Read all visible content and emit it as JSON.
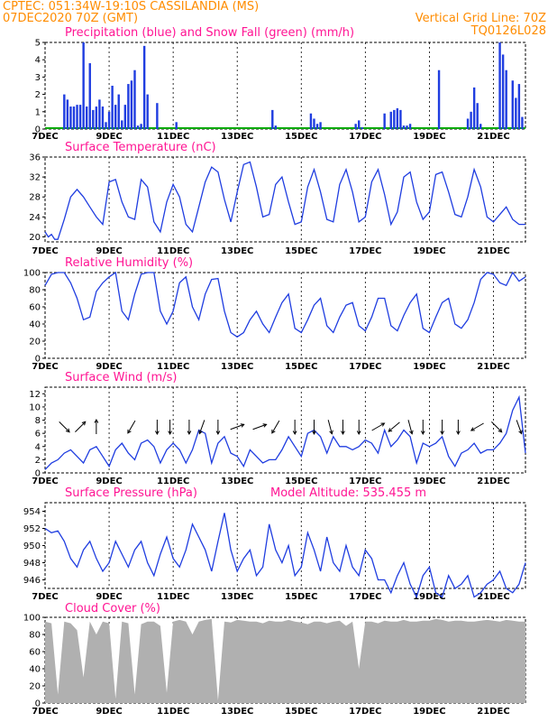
{
  "header": {
    "line1_left": "CPTEC:   051:34W-19:10S   CASSILANDIA (MS)",
    "line2_left": "07DEC2020 70Z (GMT)",
    "line2_right": "Vertical Grid Line: 70Z",
    "line3_right": "TQ0126L028"
  },
  "x_dates": [
    "7DEC",
    "9DEC",
    "11DEC",
    "13DEC",
    "15DEC",
    "17DEC",
    "19DEC",
    "21DEC"
  ],
  "colors": {
    "precip": "#1f3de0",
    "snow": "#00aa00",
    "line": "#1f3de0",
    "cloud": "#b0b0b0"
  },
  "chart_data": [
    {
      "id": "precip",
      "type": "bar",
      "title": "Precipitation (blue) and Snow Fall (green) (mm/h)",
      "xlabel": "",
      "ylabel": "mm/h",
      "ylim": [
        0,
        5
      ],
      "yticks": [
        0,
        1,
        2,
        3,
        4,
        5
      ],
      "x_range_days": [
        0,
        15
      ],
      "series": [
        {
          "name": "Precipitation",
          "x": [
            0.6,
            0.7,
            0.8,
            0.9,
            1.0,
            1.1,
            1.2,
            1.3,
            1.4,
            1.5,
            1.6,
            1.7,
            1.8,
            1.9,
            2.0,
            2.1,
            2.2,
            2.3,
            2.4,
            2.5,
            2.6,
            2.7,
            2.8,
            2.9,
            3.0,
            3.1,
            3.2,
            3.5,
            4.1,
            7.1,
            7.2,
            8.3,
            8.4,
            8.5,
            8.6,
            9.7,
            9.8,
            9.9,
            10.6,
            10.8,
            10.9,
            11.0,
            11.1,
            11.2,
            11.3,
            11.4,
            12.3,
            13.2,
            13.3,
            13.4,
            13.5,
            13.6,
            14.2,
            14.3,
            14.4,
            14.6,
            14.7,
            14.8,
            14.9
          ],
          "values": [
            2.0,
            1.7,
            1.3,
            1.3,
            1.4,
            1.4,
            5.0,
            1.3,
            3.8,
            1.1,
            1.3,
            1.7,
            1.3,
            0.4,
            1.0,
            2.5,
            1.4,
            2.0,
            0.5,
            1.4,
            2.6,
            2.8,
            3.4,
            0.2,
            0.3,
            4.8,
            2.0,
            1.5,
            0.4,
            1.1,
            0.2,
            0.9,
            0.6,
            0.3,
            0.4,
            0.3,
            0.5,
            0.1,
            0.9,
            1.0,
            1.1,
            1.2,
            1.1,
            0.2,
            0.2,
            0.3,
            3.4,
            0.6,
            1.0,
            2.4,
            1.5,
            0.3,
            5.0,
            4.3,
            3.4,
            2.8,
            1.8,
            2.6,
            0.7
          ]
        },
        {
          "name": "Snow Fall",
          "x": [],
          "values": []
        }
      ]
    },
    {
      "id": "temp",
      "type": "line",
      "title": "Surface Temperature (nC)",
      "ylim": [
        19,
        36
      ],
      "yticks": [
        20,
        24,
        28,
        32,
        36
      ],
      "x_range_days": [
        0,
        15
      ],
      "x": [
        0,
        0.1,
        0.2,
        0.3,
        0.4,
        0.6,
        0.8,
        1.0,
        1.2,
        1.4,
        1.6,
        1.8,
        2.0,
        2.2,
        2.4,
        2.6,
        2.8,
        3.0,
        3.2,
        3.4,
        3.6,
        3.8,
        4.0,
        4.2,
        4.4,
        4.6,
        4.8,
        5.0,
        5.2,
        5.4,
        5.6,
        5.8,
        6.0,
        6.2,
        6.4,
        6.6,
        6.8,
        7.0,
        7.2,
        7.4,
        7.6,
        7.8,
        8.0,
        8.2,
        8.4,
        8.6,
        8.8,
        9.0,
        9.2,
        9.4,
        9.6,
        9.8,
        10.0,
        10.2,
        10.4,
        10.6,
        10.8,
        11.0,
        11.2,
        11.4,
        11.6,
        11.8,
        12.0,
        12.2,
        12.4,
        12.6,
        12.8,
        13.0,
        13.2,
        13.4,
        13.6,
        13.8,
        14.0,
        14.2,
        14.4,
        14.6,
        14.8,
        15.0
      ],
      "y": [
        21.0,
        20.0,
        20.5,
        19.5,
        19.5,
        23.5,
        28.0,
        29.5,
        28.0,
        26.0,
        24.0,
        22.5,
        31.0,
        31.5,
        27.0,
        24.0,
        23.5,
        31.5,
        30.0,
        23.0,
        21.0,
        27.0,
        30.5,
        28.0,
        22.5,
        21.0,
        26.0,
        31.0,
        34.0,
        33.0,
        27.5,
        23.0,
        29.0,
        34.5,
        35.0,
        30.0,
        24.0,
        24.5,
        30.5,
        32.0,
        27.0,
        22.5,
        23.0,
        30.0,
        33.5,
        29.0,
        23.5,
        23.0,
        30.5,
        33.5,
        29.0,
        23.0,
        24.0,
        31.0,
        33.5,
        28.5,
        22.5,
        25.0,
        32.0,
        33.0,
        27.0,
        23.5,
        25.0,
        32.5,
        33.0,
        29.0,
        24.5,
        24.0,
        28.0,
        33.5,
        30.0,
        24.0,
        23.0,
        24.5,
        26.0,
        23.5,
        22.5,
        22.5
      ]
    },
    {
      "id": "rh",
      "type": "line",
      "title": "Relative Humidity (%)",
      "ylim": [
        0,
        100
      ],
      "yticks": [
        0,
        20,
        40,
        60,
        80,
        100
      ],
      "x_range_days": [
        0,
        15
      ],
      "x": [
        0,
        0.2,
        0.4,
        0.6,
        0.8,
        1.0,
        1.2,
        1.4,
        1.6,
        1.8,
        2.0,
        2.2,
        2.4,
        2.6,
        2.8,
        3.0,
        3.2,
        3.4,
        3.6,
        3.8,
        4.0,
        4.2,
        4.4,
        4.6,
        4.8,
        5.0,
        5.2,
        5.4,
        5.6,
        5.8,
        6.0,
        6.2,
        6.4,
        6.6,
        6.8,
        7.0,
        7.2,
        7.4,
        7.6,
        7.8,
        8.0,
        8.2,
        8.4,
        8.6,
        8.8,
        9.0,
        9.2,
        9.4,
        9.6,
        9.8,
        10.0,
        10.2,
        10.4,
        10.6,
        10.8,
        11.0,
        11.2,
        11.4,
        11.6,
        11.8,
        12.0,
        12.2,
        12.4,
        12.6,
        12.8,
        13.0,
        13.2,
        13.4,
        13.6,
        13.8,
        14.0,
        14.2,
        14.4,
        14.6,
        14.8,
        15.0
      ],
      "y": [
        85,
        98,
        100,
        100,
        88,
        70,
        45,
        48,
        78,
        88,
        95,
        100,
        55,
        45,
        75,
        98,
        100,
        100,
        55,
        40,
        55,
        88,
        95,
        60,
        45,
        75,
        92,
        93,
        55,
        30,
        25,
        30,
        45,
        55,
        40,
        30,
        48,
        65,
        75,
        35,
        30,
        45,
        62,
        70,
        38,
        30,
        48,
        62,
        65,
        38,
        32,
        48,
        70,
        70,
        38,
        32,
        50,
        65,
        75,
        35,
        30,
        48,
        65,
        70,
        40,
        35,
        45,
        65,
        92,
        100,
        98,
        88,
        85,
        100,
        90,
        95
      ]
    },
    {
      "id": "wind",
      "type": "line",
      "title": "Surface Wind (m/s)",
      "ylim": [
        0,
        13
      ],
      "yticks": [
        0,
        2,
        4,
        6,
        8,
        10,
        12
      ],
      "x_range_days": [
        0,
        15
      ],
      "x": [
        0,
        0.2,
        0.4,
        0.6,
        0.8,
        1.0,
        1.2,
        1.4,
        1.6,
        1.8,
        2.0,
        2.2,
        2.4,
        2.6,
        2.8,
        3.0,
        3.2,
        3.4,
        3.6,
        3.8,
        4.0,
        4.2,
        4.4,
        4.6,
        4.8,
        5.0,
        5.2,
        5.4,
        5.6,
        5.8,
        6.0,
        6.2,
        6.4,
        6.6,
        6.8,
        7.0,
        7.2,
        7.4,
        7.6,
        7.8,
        8.0,
        8.2,
        8.4,
        8.6,
        8.8,
        9.0,
        9.2,
        9.4,
        9.6,
        9.8,
        10.0,
        10.2,
        10.4,
        10.6,
        10.8,
        11.0,
        11.2,
        11.4,
        11.6,
        11.8,
        12.0,
        12.2,
        12.4,
        12.6,
        12.8,
        13.0,
        13.2,
        13.4,
        13.6,
        13.8,
        14.0,
        14.2,
        14.4,
        14.6,
        14.8,
        15.0
      ],
      "y": [
        0.5,
        1.5,
        2.0,
        3.0,
        3.5,
        2.5,
        1.5,
        3.5,
        4.0,
        2.5,
        1.0,
        3.5,
        4.5,
        3.0,
        2.0,
        4.5,
        5.0,
        4.0,
        1.5,
        3.5,
        4.5,
        3.5,
        1.5,
        3.5,
        6.5,
        6.0,
        1.5,
        4.5,
        5.5,
        3.0,
        2.5,
        1.0,
        3.5,
        2.5,
        1.5,
        2.0,
        2.0,
        3.5,
        5.5,
        4.0,
        2.5,
        6.0,
        6.5,
        5.5,
        3.0,
        5.5,
        4.0,
        4.0,
        3.5,
        4.0,
        5.0,
        4.5,
        3.0,
        6.5,
        4.0,
        5.0,
        6.5,
        5.5,
        1.5,
        4.5,
        4.0,
        4.5,
        5.5,
        2.5,
        1.0,
        3.0,
        3.5,
        4.5,
        3.0,
        3.5,
        3.5,
        4.5,
        6.0,
        9.5,
        11.5,
        3.0
      ],
      "arrows": [
        {
          "x": 0.6,
          "dir": 135
        },
        {
          "x": 1.1,
          "dir": 45
        },
        {
          "x": 1.6,
          "dir": 0
        },
        {
          "x": 2.7,
          "dir": 210
        },
        {
          "x": 3.5,
          "dir": 180
        },
        {
          "x": 3.9,
          "dir": 180
        },
        {
          "x": 4.5,
          "dir": 180
        },
        {
          "x": 4.9,
          "dir": 200
        },
        {
          "x": 5.4,
          "dir": 180
        },
        {
          "x": 6.0,
          "dir": 70
        },
        {
          "x": 6.7,
          "dir": 70
        },
        {
          "x": 7.2,
          "dir": 210
        },
        {
          "x": 7.8,
          "dir": 180
        },
        {
          "x": 8.4,
          "dir": 180
        },
        {
          "x": 8.9,
          "dir": 165
        },
        {
          "x": 9.3,
          "dir": 180
        },
        {
          "x": 9.8,
          "dir": 180
        },
        {
          "x": 10.4,
          "dir": 60
        },
        {
          "x": 10.9,
          "dir": 230
        },
        {
          "x": 11.4,
          "dir": 165
        },
        {
          "x": 11.8,
          "dir": 180
        },
        {
          "x": 12.4,
          "dir": 180
        },
        {
          "x": 12.9,
          "dir": 180
        },
        {
          "x": 13.5,
          "dir": 240
        },
        {
          "x": 14.1,
          "dir": 135
        },
        {
          "x": 14.8,
          "dir": 160
        }
      ]
    },
    {
      "id": "pres",
      "type": "line",
      "title": "Surface Pressure (hPa)",
      "annotation": "Model Altitude: 535.455  m",
      "ylim": [
        945,
        955
      ],
      "yticks": [
        946,
        948,
        950,
        952,
        954
      ],
      "x_range_days": [
        0,
        15
      ],
      "x": [
        0,
        0.2,
        0.4,
        0.6,
        0.8,
        1.0,
        1.2,
        1.4,
        1.6,
        1.8,
        2.0,
        2.2,
        2.4,
        2.6,
        2.8,
        3.0,
        3.2,
        3.4,
        3.6,
        3.8,
        4.0,
        4.2,
        4.4,
        4.6,
        4.8,
        5.0,
        5.2,
        5.4,
        5.6,
        5.8,
        6.0,
        6.2,
        6.4,
        6.6,
        6.8,
        7.0,
        7.2,
        7.4,
        7.6,
        7.8,
        8.0,
        8.2,
        8.4,
        8.6,
        8.8,
        9.0,
        9.2,
        9.4,
        9.6,
        9.8,
        10.0,
        10.2,
        10.4,
        10.6,
        10.8,
        11.0,
        11.2,
        11.4,
        11.6,
        11.8,
        12.0,
        12.2,
        12.4,
        12.6,
        12.8,
        13.0,
        13.2,
        13.4,
        13.6,
        13.8,
        14.0,
        14.2,
        14.4,
        14.6,
        14.8,
        15.0
      ],
      "y": [
        952.0,
        951.5,
        951.7,
        950.5,
        948.5,
        947.5,
        949.5,
        950.5,
        948.5,
        947.0,
        948.0,
        950.5,
        949.0,
        947.5,
        949.5,
        950.5,
        948.0,
        946.5,
        949.0,
        951.0,
        948.5,
        947.5,
        949.5,
        952.5,
        951.0,
        949.5,
        947.0,
        950.5,
        953.8,
        949.5,
        947.0,
        948.5,
        949.5,
        946.5,
        947.5,
        952.5,
        949.5,
        948.0,
        950.0,
        946.5,
        947.5,
        951.5,
        949.5,
        947.0,
        951.0,
        948.0,
        947.0,
        950.0,
        947.5,
        946.5,
        949.5,
        948.5,
        946.0,
        946.0,
        944.5,
        946.5,
        948.0,
        945.5,
        944.0,
        946.5,
        947.5,
        944.5,
        944.0,
        946.5,
        945.0,
        945.5,
        946.5,
        944.0,
        944.5,
        945.5,
        946.0,
        947.0,
        945.0,
        944.5,
        945.5,
        948.0
      ]
    },
    {
      "id": "cloud",
      "type": "area",
      "title": "Cloud Cover (%)",
      "ylim": [
        0,
        100
      ],
      "yticks": [
        0,
        20,
        40,
        60,
        80,
        100
      ],
      "x_range_days": [
        0,
        15
      ],
      "x": [
        0,
        0.2,
        0.4,
        0.6,
        0.8,
        1.0,
        1.2,
        1.4,
        1.6,
        1.8,
        2.0,
        2.2,
        2.4,
        2.6,
        2.8,
        3.0,
        3.2,
        3.4,
        3.6,
        3.8,
        4.0,
        4.2,
        4.4,
        4.6,
        4.8,
        5.0,
        5.2,
        5.4,
        5.6,
        5.8,
        6.0,
        6.2,
        6.4,
        6.6,
        6.8,
        7.0,
        7.2,
        7.4,
        7.6,
        7.8,
        8.0,
        8.2,
        8.4,
        8.6,
        8.8,
        9.0,
        9.2,
        9.4,
        9.6,
        9.8,
        10.0,
        10.2,
        10.4,
        10.6,
        10.8,
        11.0,
        11.2,
        11.4,
        11.6,
        11.8,
        12.0,
        12.2,
        12.4,
        12.6,
        12.8,
        13.0,
        13.2,
        13.4,
        13.6,
        13.8,
        14.0,
        14.2,
        14.4,
        14.6,
        14.8,
        15.0
      ],
      "y": [
        95,
        93,
        10,
        95,
        93,
        85,
        30,
        95,
        80,
        95,
        93,
        5,
        95,
        93,
        10,
        92,
        95,
        95,
        90,
        12,
        95,
        97,
        95,
        80,
        95,
        97,
        98,
        3,
        95,
        94,
        97,
        96,
        95,
        95,
        93,
        96,
        95,
        95,
        97,
        95,
        94,
        92,
        95,
        95,
        93,
        95,
        96,
        90,
        95,
        40,
        95,
        95,
        93,
        96,
        95,
        95,
        97,
        95,
        95,
        96,
        96,
        98,
        97,
        95,
        96,
        96,
        95,
        95,
        96,
        97,
        96,
        95,
        97,
        96,
        95,
        95
      ]
    }
  ]
}
